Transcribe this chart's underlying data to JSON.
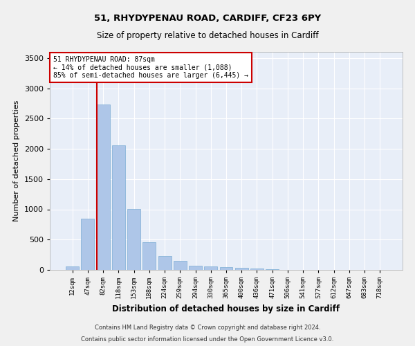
{
  "title_line1": "51, RHYDYPENAU ROAD, CARDIFF, CF23 6PY",
  "title_line2": "Size of property relative to detached houses in Cardiff",
  "xlabel": "Distribution of detached houses by size in Cardiff",
  "ylabel": "Number of detached properties",
  "bar_color": "#aec6e8",
  "bar_edge_color": "#7badd4",
  "background_color": "#e8eef8",
  "grid_color": "#ffffff",
  "categories": [
    "12sqm",
    "47sqm",
    "82sqm",
    "118sqm",
    "153sqm",
    "188sqm",
    "224sqm",
    "259sqm",
    "294sqm",
    "330sqm",
    "365sqm",
    "400sqm",
    "436sqm",
    "471sqm",
    "506sqm",
    "541sqm",
    "577sqm",
    "612sqm",
    "647sqm",
    "683sqm",
    "718sqm"
  ],
  "values": [
    60,
    850,
    2730,
    2060,
    1010,
    460,
    230,
    150,
    70,
    55,
    45,
    35,
    20,
    10,
    5,
    3,
    2,
    1,
    1,
    0,
    0
  ],
  "ylim": [
    0,
    3600
  ],
  "yticks": [
    0,
    500,
    1000,
    1500,
    2000,
    2500,
    3000,
    3500
  ],
  "red_line_x": 2,
  "annotation_line1": "51 RHYDYPENAU ROAD: 87sqm",
  "annotation_line2": "← 14% of detached houses are smaller (1,088)",
  "annotation_line3": "85% of semi-detached houses are larger (6,445) →",
  "annotation_box_color": "#ffffff",
  "annotation_edge_color": "#cc0000",
  "footer_line1": "Contains HM Land Registry data © Crown copyright and database right 2024.",
  "footer_line2": "Contains public sector information licensed under the Open Government Licence v3.0."
}
